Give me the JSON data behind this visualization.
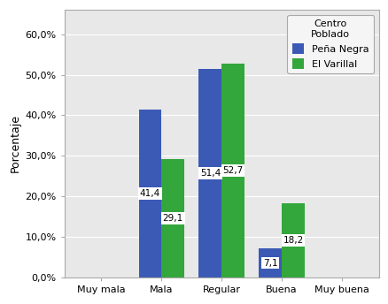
{
  "categories": [
    "Muy mala",
    "Mala",
    "Regular",
    "Buena",
    "Muy buena"
  ],
  "peña_negra": [
    0.0,
    41.4,
    51.4,
    7.1,
    0.0
  ],
  "el_varillal": [
    0.0,
    29.1,
    52.7,
    18.2,
    0.0
  ],
  "color_peña": "#3a5ab5",
  "color_varillal": "#33a63c",
  "ylabel": "Porcentaje",
  "ylim": [
    0,
    66
  ],
  "yticks": [
    0.0,
    10.0,
    20.0,
    30.0,
    40.0,
    50.0,
    60.0
  ],
  "ytick_labels": [
    "0,0%",
    "10,0%",
    "20,0%",
    "30,0%",
    "40,0%",
    "50,0%",
    "60,0%"
  ],
  "legend_title": "Centro\nPoblado",
  "legend_labels": [
    "Peña Negra",
    "El Varillal"
  ],
  "bar_labels_peña": [
    "",
    "41,4",
    "51,4",
    "7,1",
    ""
  ],
  "bar_labels_varillal": [
    "",
    "29,1",
    "52,7",
    "18,2",
    ""
  ],
  "figure_facecolor": "#ffffff",
  "axes_facecolor": "#e8e8e8",
  "bar_width": 0.38,
  "fontsize_ticks": 8,
  "fontsize_label": 9,
  "fontsize_legend": 8,
  "fontsize_bar_label": 7.5
}
